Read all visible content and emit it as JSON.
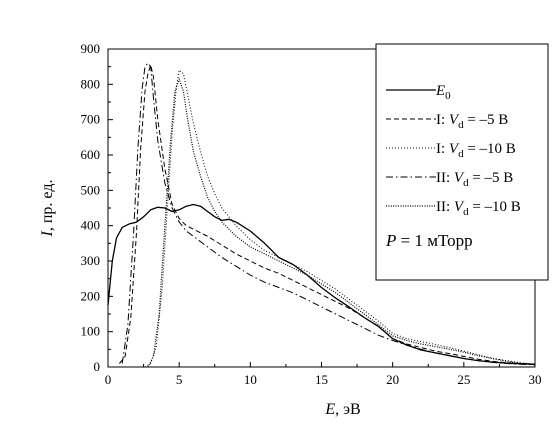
{
  "chart_data": {
    "type": "line",
    "xlabel": {
      "symbol": "E",
      "unit": "эВ"
    },
    "ylabel": {
      "symbol": "I",
      "unit": "пр. ед."
    },
    "xlim": [
      0,
      30
    ],
    "ylim": [
      0,
      900
    ],
    "xticks": [
      0,
      5,
      10,
      15,
      20,
      25,
      30
    ],
    "yticks": [
      0,
      100,
      200,
      300,
      400,
      500,
      600,
      700,
      800,
      900
    ],
    "grid": false,
    "legend_position": "top-right",
    "annotation": {
      "prefix": "P",
      "text": " = 1 мТорр"
    },
    "series": [
      {
        "legend_symbol": "E",
        "legend_subscript": "0",
        "legend_suffix": "",
        "style": "solid",
        "x": [
          0,
          0.3,
          0.6,
          1,
          1.5,
          2,
          2.5,
          3,
          3.5,
          4,
          4.5,
          5,
          5.5,
          6,
          6.5,
          7,
          7.5,
          8,
          8.5,
          9,
          10,
          11,
          12,
          13,
          14,
          15,
          16,
          17,
          18,
          19,
          20,
          21,
          22,
          23,
          24,
          25,
          26,
          27,
          28,
          29,
          30
        ],
        "values": [
          175,
          300,
          365,
          395,
          405,
          410,
          425,
          445,
          452,
          450,
          440,
          445,
          455,
          460,
          455,
          440,
          425,
          415,
          418,
          410,
          385,
          350,
          310,
          290,
          260,
          225,
          195,
          168,
          140,
          115,
          80,
          62,
          48,
          40,
          32,
          24,
          18,
          14,
          11,
          9,
          8
        ]
      },
      {
        "legend_prefix": "I: ",
        "legend_symbol": "V",
        "legend_subscript": "d",
        "legend_suffix": " = –5 В",
        "style": "dashed",
        "x": [
          0.8,
          1.2,
          1.6,
          2,
          2.3,
          2.6,
          2.8,
          3,
          3.2,
          3.5,
          4,
          4.5,
          5,
          5.5,
          6,
          7,
          8,
          9,
          10,
          11,
          12,
          13,
          14,
          15,
          16,
          17,
          18,
          19,
          20,
          21,
          22,
          23,
          24,
          25,
          26,
          27,
          28,
          29,
          30
        ],
        "values": [
          10,
          30,
          140,
          380,
          620,
          780,
          830,
          855,
          820,
          700,
          560,
          460,
          420,
          400,
          390,
          370,
          345,
          320,
          300,
          280,
          265,
          245,
          225,
          205,
          185,
          165,
          140,
          115,
          80,
          65,
          55,
          45,
          38,
          30,
          22,
          16,
          12,
          10,
          8
        ]
      },
      {
        "legend_prefix": "I: ",
        "legend_symbol": "V",
        "legend_subscript": "d",
        "legend_suffix": " = –10 В",
        "style": "dotted",
        "x": [
          2.6,
          3,
          3.4,
          3.8,
          4.2,
          4.5,
          4.8,
          5,
          5.3,
          5.6,
          6,
          6.5,
          7,
          7.5,
          8,
          9,
          10,
          11,
          12,
          13,
          14,
          15,
          16,
          17,
          18,
          19,
          20,
          21,
          22,
          23,
          24,
          25,
          26,
          27,
          28,
          29,
          30
        ],
        "values": [
          0,
          10,
          60,
          220,
          470,
          660,
          790,
          840,
          830,
          770,
          690,
          610,
          540,
          490,
          450,
          400,
          360,
          330,
          310,
          290,
          270,
          245,
          220,
          190,
          160,
          130,
          95,
          80,
          72,
          64,
          55,
          45,
          35,
          25,
          18,
          12,
          8
        ]
      },
      {
        "legend_prefix": "II: ",
        "legend_symbol": "V",
        "legend_subscript": "d",
        "legend_suffix": " = –5 В",
        "style": "dashdot",
        "x": [
          1,
          1.4,
          1.8,
          2.1,
          2.4,
          2.6,
          2.8,
          3,
          3.2,
          3.5,
          4,
          4.5,
          5,
          5.5,
          6,
          7,
          8,
          9,
          10,
          11,
          12,
          13,
          14,
          15,
          16,
          17,
          18,
          19,
          20,
          21,
          22,
          23,
          24,
          25,
          26,
          27,
          28,
          29,
          30
        ],
        "values": [
          10,
          120,
          380,
          620,
          790,
          850,
          860,
          850,
          760,
          640,
          520,
          450,
          410,
          385,
          370,
          340,
          310,
          285,
          260,
          240,
          225,
          210,
          190,
          170,
          150,
          130,
          110,
          90,
          75,
          62,
          50,
          40,
          32,
          24,
          18,
          13,
          10,
          8,
          6
        ]
      },
      {
        "legend_prefix": "II: ",
        "legend_symbol": "V",
        "legend_subscript": "d",
        "legend_suffix": " = –10 В",
        "style": "finedot",
        "x": [
          2.8,
          3.2,
          3.6,
          4,
          4.4,
          4.7,
          5,
          5.3,
          5.6,
          6,
          6.5,
          7,
          7.5,
          8,
          9,
          10,
          11,
          12,
          13,
          14,
          15,
          16,
          17,
          18,
          19,
          20,
          21,
          22,
          23,
          24,
          25,
          26,
          27,
          28,
          29,
          30
        ],
        "values": [
          0,
          30,
          150,
          400,
          640,
          780,
          815,
          780,
          700,
          610,
          540,
          480,
          440,
          410,
          370,
          340,
          320,
          300,
          280,
          260,
          235,
          210,
          180,
          150,
          120,
          88,
          75,
          65,
          58,
          50,
          42,
          32,
          24,
          16,
          10,
          7
        ]
      }
    ]
  }
}
